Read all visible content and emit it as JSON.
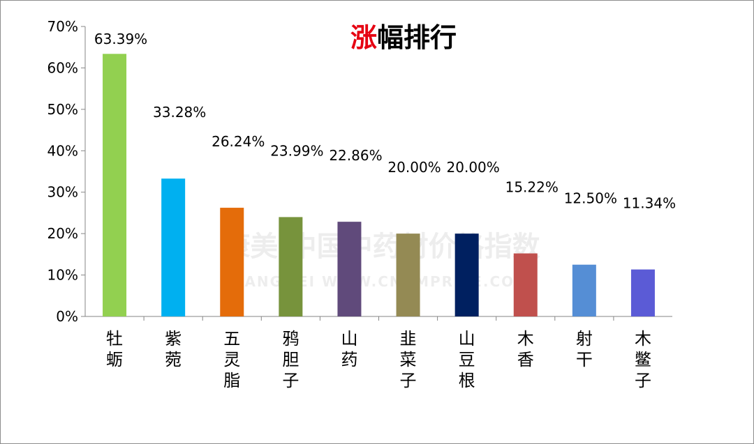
{
  "chart_data": {
    "type": "bar",
    "title_highlight": "涨",
    "title_rest": "幅排行",
    "title_highlight_color": "#e60012",
    "categories": [
      "牡蛎",
      "紫菀",
      "五灵脂",
      "鸦胆子",
      "山药",
      "韭菜子",
      "山豆根",
      "木香",
      "射干",
      "木鳖子"
    ],
    "values": [
      63.39,
      33.28,
      26.24,
      23.99,
      22.86,
      20.0,
      20.0,
      15.22,
      12.5,
      11.34
    ],
    "value_labels": [
      "63.39%",
      "33.28%",
      "26.24%",
      "23.99%",
      "22.86%",
      "20.00%",
      "20.00%",
      "15.22%",
      "12.50%",
      "11.34%"
    ],
    "colors": [
      "#92d050",
      "#00b0f0",
      "#e46c0a",
      "#77933c",
      "#604a7b",
      "#948a54",
      "#002060",
      "#c0504d",
      "#558ed5",
      "#5b5bd6"
    ],
    "yticks": [
      "0%",
      "10%",
      "20%",
      "30%",
      "40%",
      "50%",
      "60%",
      "70%"
    ],
    "ylim": [
      0,
      70
    ],
    "grid": false,
    "legend": "none"
  },
  "watermark": {
    "line1": "康美·中国中药材价格指数",
    "line2": "KANGMEI WWW.CNKMPRICE.COM"
  }
}
